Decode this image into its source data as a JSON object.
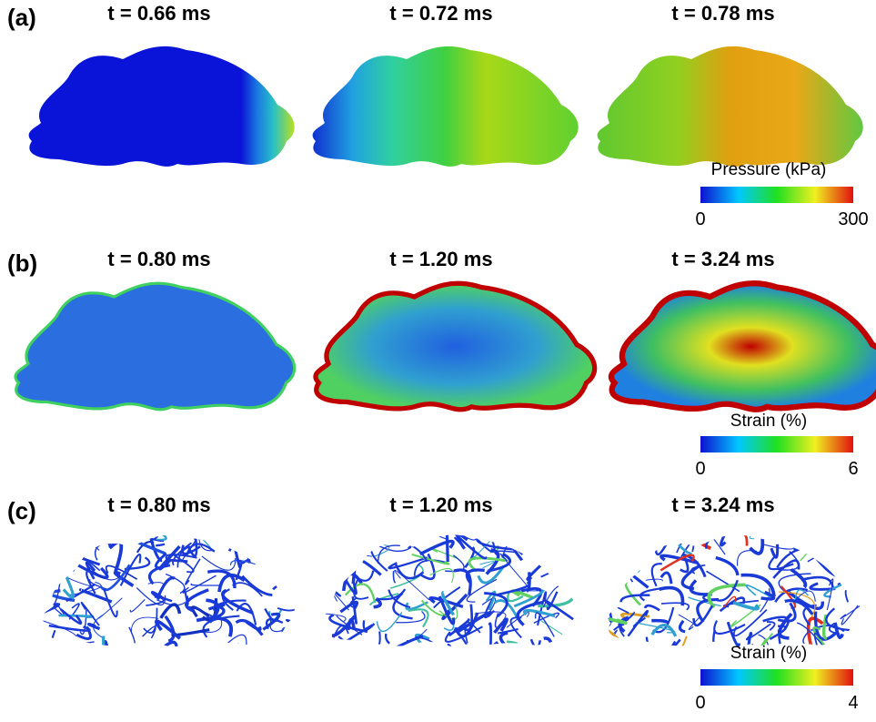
{
  "panels": [
    {
      "label": "(a)",
      "times": [
        "t = 0.66 ms",
        "t = 0.72 ms",
        "t = 0.78 ms"
      ],
      "colorbar": {
        "title": "Pressure (kPa)",
        "min": 0,
        "max": 300
      }
    },
    {
      "label": "(b)",
      "times": [
        "t = 0.80 ms",
        "t = 1.20 ms",
        "t = 3.24 ms"
      ],
      "colorbar": {
        "title": "Strain (%)",
        "min": 0,
        "max": 6
      }
    },
    {
      "label": "(c)",
      "times": [
        "t = 0.80 ms",
        "t = 1.20 ms",
        "t = 3.24 ms"
      ],
      "colorbar": {
        "title": "Strain (%)",
        "min": 0,
        "max": 4
      }
    }
  ]
}
